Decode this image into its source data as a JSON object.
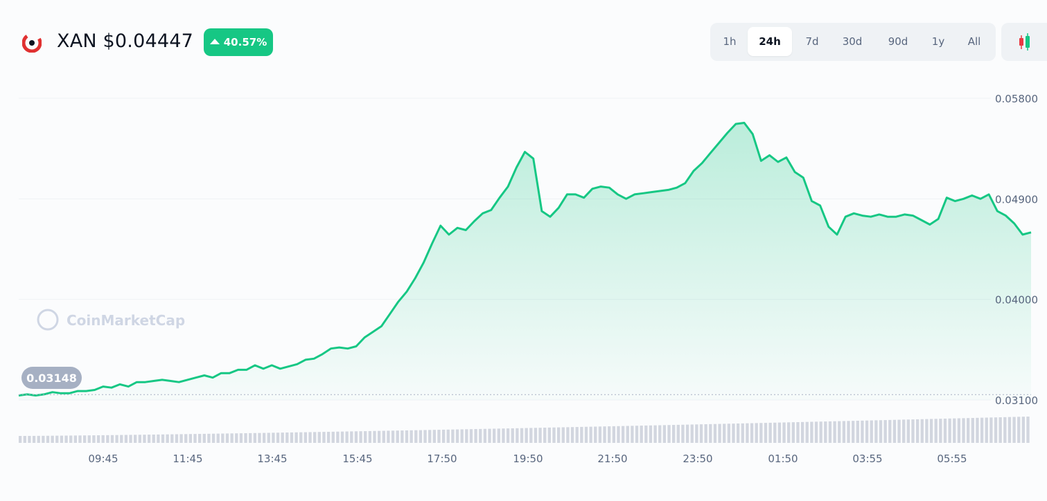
{
  "header": {
    "title": "XAN $0.04447",
    "change": "40.57%",
    "ranges": [
      "1h",
      "24h",
      "7d",
      "30d",
      "90d",
      "1y",
      "All"
    ],
    "active_range": "24h"
  },
  "watermark": "CoinMarketCap",
  "colors": {
    "accent_green": "#16c784",
    "line": "#16c784",
    "volume": "#d2d6df",
    "candle_red": "#ea3943",
    "grid": "#eff2f5"
  },
  "chart_data": {
    "type": "area",
    "x_ticks": [
      "09:45",
      "11:45",
      "13:45",
      "15:45",
      "17:50",
      "19:50",
      "21:50",
      "23:50",
      "01:50",
      "03:55",
      "05:55"
    ],
    "y_ticks": [
      "0.05800",
      "0.04900",
      "0.04000",
      "0.03100"
    ],
    "ylim": [
      0.031,
      0.058
    ],
    "open_price_label": "0.03148",
    "open_price": 0.03148,
    "y": [
      0.0314,
      0.0315,
      0.0314,
      0.0315,
      0.0317,
      0.0316,
      0.0316,
      0.0318,
      0.0318,
      0.0319,
      0.0322,
      0.0321,
      0.0324,
      0.0322,
      0.0326,
      0.0326,
      0.0327,
      0.0328,
      0.0327,
      0.0326,
      0.0328,
      0.033,
      0.0332,
      0.033,
      0.0334,
      0.0334,
      0.0337,
      0.0337,
      0.0341,
      0.0338,
      0.0341,
      0.0338,
      0.034,
      0.0342,
      0.0346,
      0.0347,
      0.0351,
      0.0356,
      0.0357,
      0.0356,
      0.0358,
      0.0366,
      0.0371,
      0.0376,
      0.0387,
      0.0398,
      0.0407,
      0.0419,
      0.0433,
      0.045,
      0.0466,
      0.0458,
      0.0464,
      0.0462,
      0.047,
      0.0477,
      0.048,
      0.0491,
      0.0501,
      0.0518,
      0.0532,
      0.0526,
      0.0479,
      0.0474,
      0.0482,
      0.0494,
      0.0494,
      0.0491,
      0.0499,
      0.0501,
      0.05,
      0.0494,
      0.049,
      0.0494,
      0.0495,
      0.0496,
      0.0497,
      0.0498,
      0.05,
      0.0504,
      0.0515,
      0.0522,
      0.0531,
      0.054,
      0.0549,
      0.0557,
      0.0558,
      0.0548,
      0.0524,
      0.0529,
      0.0523,
      0.0527,
      0.0514,
      0.0509,
      0.0488,
      0.0484,
      0.0465,
      0.0458,
      0.0474,
      0.0477,
      0.0475,
      0.0474,
      0.0476,
      0.0474,
      0.0474,
      0.0476,
      0.0475,
      0.0471,
      0.0467,
      0.0472,
      0.0491,
      0.0488,
      0.049,
      0.0493,
      0.049,
      0.0494,
      0.0479,
      0.0475,
      0.0468,
      0.0458,
      0.046
    ]
  }
}
